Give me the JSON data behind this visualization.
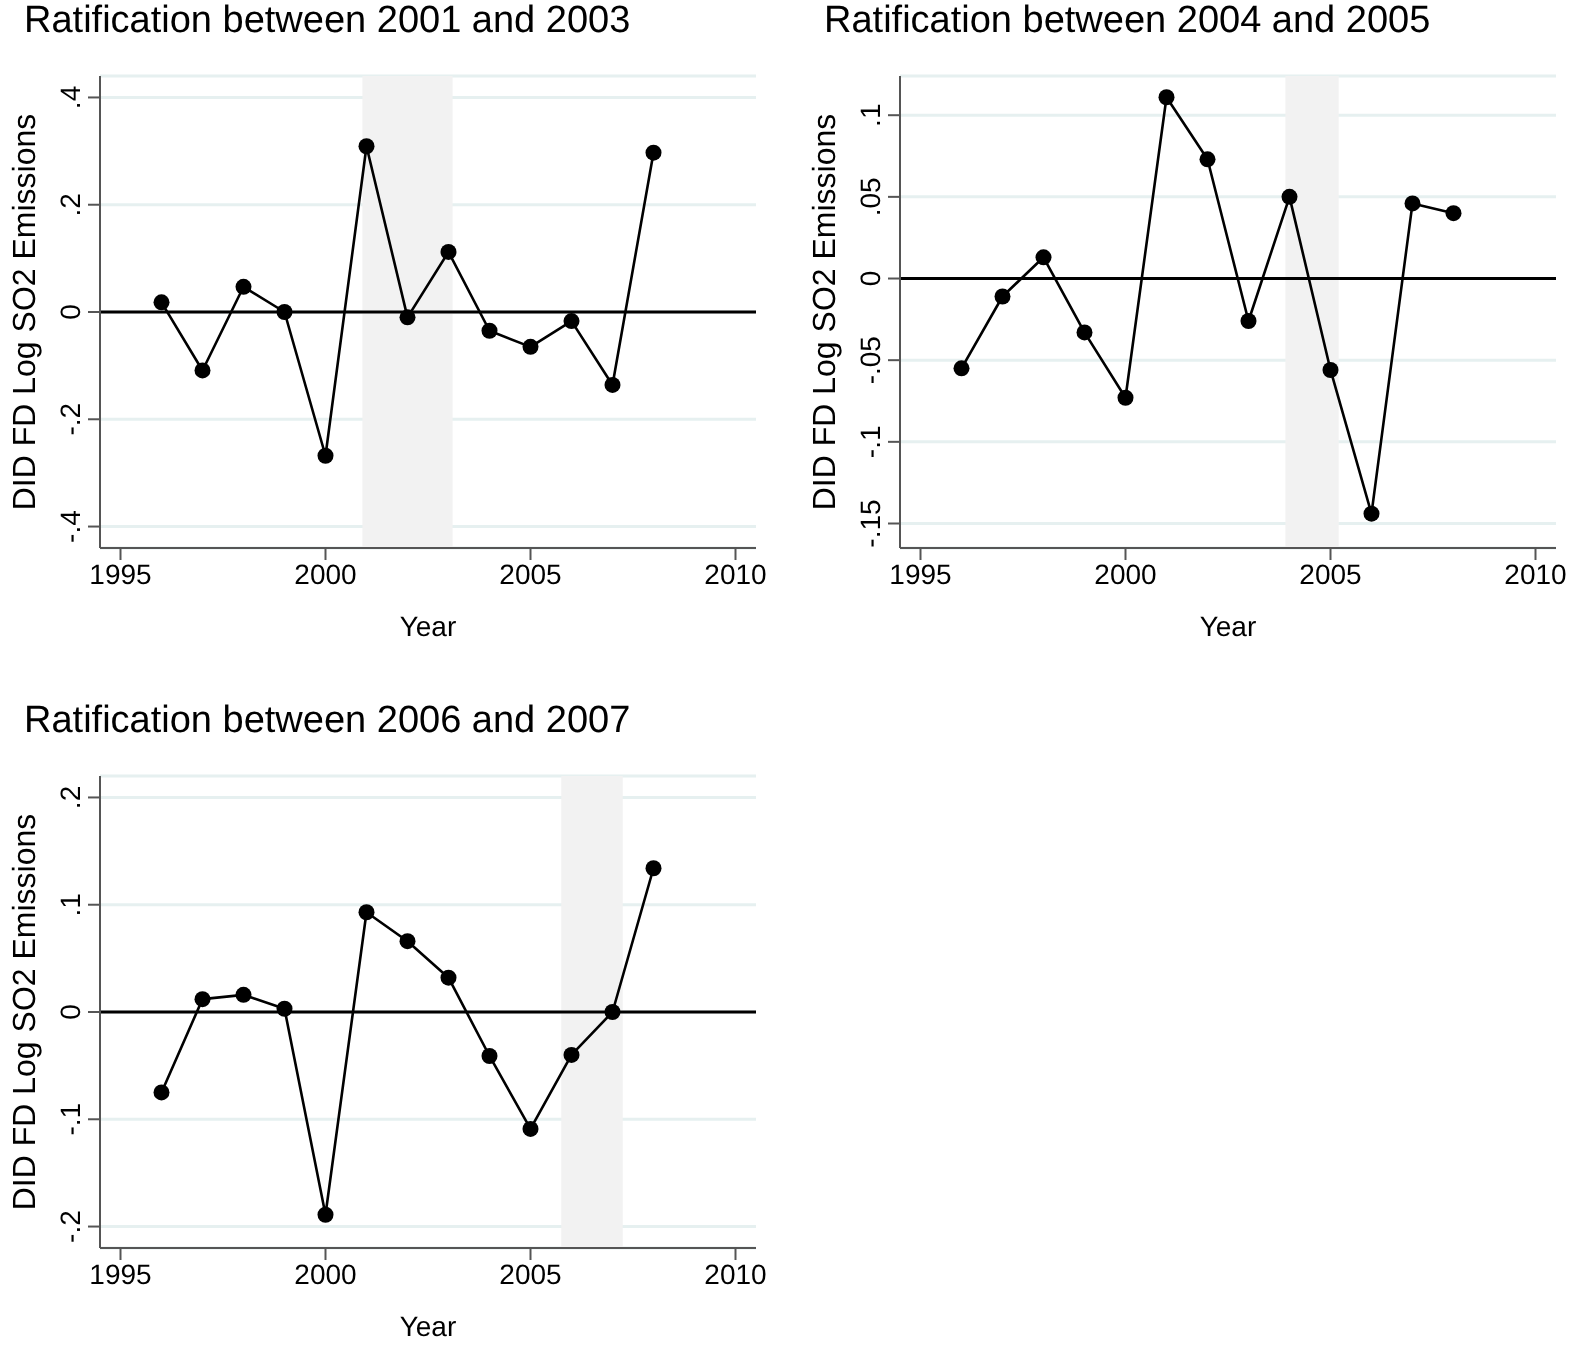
{
  "chart_data": [
    {
      "type": "line",
      "title": "Ratification between 2001 and 2003",
      "xlabel": "Year",
      "ylabel": "DID FD Log SO2 Emissions",
      "x": [
        1996,
        1997,
        1998,
        1999,
        2000,
        2001,
        2002,
        2003,
        2004,
        2005,
        2006,
        2007,
        2008
      ],
      "series": [
        {
          "color": "#000000",
          "values": [
            0.018,
            -0.109,
            0.047,
            0,
            -0.268,
            0.309,
            -0.01,
            0.112,
            -0.035,
            -0.065,
            -0.017,
            -0.136,
            0.297
          ]
        }
      ],
      "xlim": [
        1994.5,
        2010.5
      ],
      "xticks": [
        1995,
        2000,
        2005,
        2010
      ],
      "ylim": [
        -0.44,
        0.44
      ],
      "yticks": [
        {
          "value": -0.4,
          "label": "-.4"
        },
        {
          "value": -0.2,
          "label": "-.2"
        },
        {
          "value": 0,
          "label": "0"
        },
        {
          "value": 0.2,
          "label": ".2"
        },
        {
          "value": 0.4,
          "label": ".4"
        }
      ],
      "ref_lines": [
        {
          "axis": "y",
          "value": 0,
          "color": "#000000"
        }
      ],
      "bands": [
        {
          "axis": "x",
          "from": 2000.9,
          "to": 2003.1,
          "color": "#f2f2f2"
        }
      ],
      "grid": "y",
      "marker": "circle",
      "line_style": "solid"
    },
    {
      "type": "line",
      "title": "Ratification between 2004 and 2005",
      "xlabel": "Year",
      "ylabel": "DID FD Log SO2 Emissions",
      "x": [
        1996,
        1997,
        1998,
        1999,
        2000,
        2001,
        2002,
        2003,
        2004,
        2005,
        2006,
        2007,
        2008
      ],
      "series": [
        {
          "color": "#000000",
          "values": [
            -0.055,
            -0.011,
            0.013,
            -0.033,
            -0.073,
            0.111,
            0.073,
            -0.026,
            0.05,
            -0.056,
            -0.144,
            0.046,
            0.04
          ]
        }
      ],
      "xlim": [
        1994.5,
        2010.5
      ],
      "xticks": [
        1995,
        2000,
        2005,
        2010
      ],
      "ylim": [
        -0.165,
        0.124
      ],
      "yticks": [
        {
          "value": -0.15,
          "label": "-.15"
        },
        {
          "value": -0.1,
          "label": "-.1"
        },
        {
          "value": -0.05,
          "label": "-.05"
        },
        {
          "value": 0,
          "label": "0"
        },
        {
          "value": 0.05,
          "label": ".05"
        },
        {
          "value": 0.1,
          "label": ".1"
        }
      ],
      "ref_lines": [
        {
          "axis": "y",
          "value": 0,
          "color": "#000000"
        }
      ],
      "bands": [
        {
          "axis": "x",
          "from": 2003.9,
          "to": 2005.2,
          "color": "#f2f2f2"
        }
      ],
      "grid": "y",
      "marker": "circle",
      "line_style": "solid"
    },
    {
      "type": "line",
      "title": "Ratification between 2006 and 2007",
      "xlabel": "Year",
      "ylabel": "DID FD Log SO2 Emissions",
      "x": [
        1996,
        1997,
        1998,
        1999,
        2000,
        2001,
        2002,
        2003,
        2004,
        2005,
        2006,
        2007,
        2008
      ],
      "series": [
        {
          "color": "#000000",
          "values": [
            -0.075,
            0.012,
            0.016,
            0.003,
            -0.189,
            0.093,
            0.066,
            0.032,
            -0.041,
            -0.109,
            -0.04,
            0,
            0.134
          ]
        }
      ],
      "xlim": [
        1994.5,
        2010.5
      ],
      "xticks": [
        1995,
        2000,
        2005,
        2010
      ],
      "ylim": [
        -0.22,
        0.22
      ],
      "yticks": [
        {
          "value": -0.2,
          "label": "-.2"
        },
        {
          "value": -0.1,
          "label": "-.1"
        },
        {
          "value": 0,
          "label": "0"
        },
        {
          "value": 0.1,
          "label": ".1"
        },
        {
          "value": 0.2,
          "label": ".2"
        }
      ],
      "ref_lines": [
        {
          "axis": "y",
          "value": 0,
          "color": "#000000"
        }
      ],
      "bands": [
        {
          "axis": "x",
          "from": 2005.75,
          "to": 2007.25,
          "color": "#f2f2f2"
        }
      ],
      "grid": "y",
      "marker": "circle",
      "line_style": "solid"
    }
  ]
}
